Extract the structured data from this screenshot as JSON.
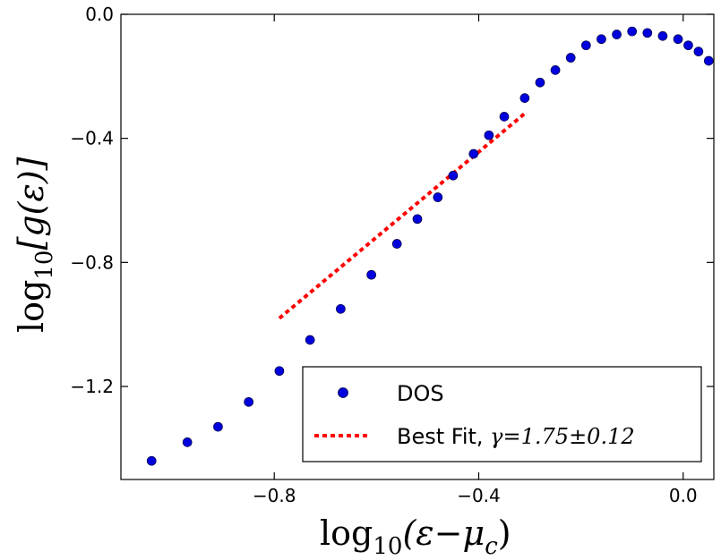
{
  "chart_data": {
    "type": "scatter",
    "title": "",
    "xlabel": "log10(ε−μc)",
    "ylabel": "log10[g(ε)]",
    "xlim": [
      -1.1,
      0.06
    ],
    "ylim": [
      -1.5,
      0.0
    ],
    "xticks": [
      -0.8,
      -0.4,
      0.0
    ],
    "xtick_labels": [
      "−0.8",
      "−0.4",
      "0.0"
    ],
    "yticks": [
      0.0,
      -0.4,
      -0.8,
      -1.2
    ],
    "ytick_labels": [
      "0.0",
      "−0.4",
      "−0.8",
      "−1.2"
    ],
    "grid": false,
    "legend_position": "bottom-right",
    "series": [
      {
        "name": "DOS",
        "kind": "scatter",
        "color": "#0000dd",
        "x": [
          -1.04,
          -0.97,
          -0.91,
          -0.85,
          -0.79,
          -0.73,
          -0.67,
          -0.61,
          -0.56,
          -0.52,
          -0.48,
          -0.45,
          -0.41,
          -0.38,
          -0.35,
          -0.31,
          -0.28,
          -0.25,
          -0.22,
          -0.19,
          -0.16,
          -0.13,
          -0.1,
          -0.07,
          -0.04,
          -0.01,
          0.01,
          0.03,
          0.05
        ],
        "y": [
          -1.44,
          -1.38,
          -1.33,
          -1.25,
          -1.15,
          -1.05,
          -0.95,
          -0.84,
          -0.74,
          -0.66,
          -0.59,
          -0.52,
          -0.45,
          -0.39,
          -0.33,
          -0.27,
          -0.22,
          -0.18,
          -0.14,
          -0.1,
          -0.08,
          -0.065,
          -0.055,
          -0.06,
          -0.07,
          -0.08,
          -0.1,
          -0.12,
          -0.15
        ]
      },
      {
        "name": "Best Fit, γ=1.75±0.12",
        "kind": "line",
        "style": "dotted",
        "color": "#ff0000",
        "x": [
          -0.79,
          -0.31
        ],
        "y": [
          -0.98,
          -0.32
        ]
      }
    ]
  },
  "legend": {
    "dos_label": "DOS",
    "fit_label_prefix": "Best Fit, ",
    "fit_label_math": "γ=1.75±0.12"
  },
  "axes": {
    "xlabel_base": "log",
    "xlabel_sub": "10",
    "xlabel_arg": "(ε−μ",
    "xlabel_arg_sub": "c",
    "xlabel_close": ")",
    "ylabel_base": "log",
    "ylabel_sub": "10",
    "ylabel_arg": "[g(ε)]"
  }
}
